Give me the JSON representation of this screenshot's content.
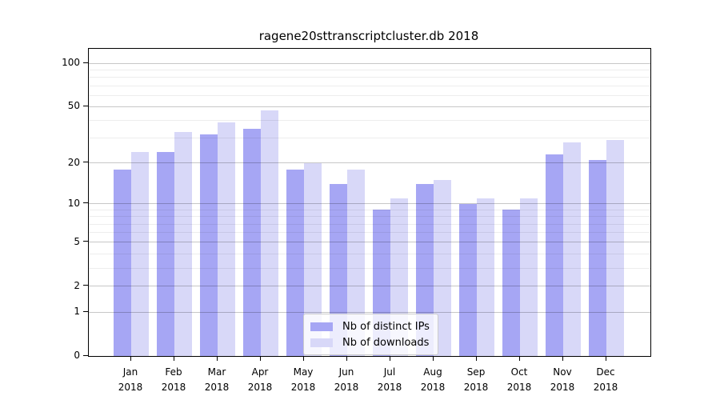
{
  "title": "ragene20sttranscriptcluster.db 2018",
  "chart_data": {
    "type": "bar",
    "title": "ragene20sttranscriptcluster.db 2018",
    "categories": [
      "Jan",
      "Feb",
      "Mar",
      "Apr",
      "May",
      "Jun",
      "Jul",
      "Aug",
      "Sep",
      "Oct",
      "Nov",
      "Dec"
    ],
    "year_label": "2018",
    "series": [
      {
        "name": "Nb of distinct IPs",
        "color": "#a6a6f4",
        "values": [
          18,
          24,
          32,
          35,
          18,
          14,
          9,
          14,
          10,
          9,
          23,
          21
        ]
      },
      {
        "name": "Nb of downloads",
        "color": "#d8d8f8",
        "values": [
          24,
          33,
          39,
          47,
          20,
          18,
          11,
          15,
          11,
          11,
          28,
          29
        ]
      }
    ],
    "xlabel": "",
    "ylabel": "",
    "yscale": "log1p",
    "yticks": [
      0,
      1,
      2,
      5,
      10,
      20,
      50,
      100
    ],
    "minor_gridlines": [
      3,
      4,
      6,
      7,
      8,
      9,
      30,
      40,
      60,
      70,
      80,
      90
    ],
    "ylim": [
      0,
      126
    ],
    "grid": "on",
    "legend_position": "lower center"
  }
}
